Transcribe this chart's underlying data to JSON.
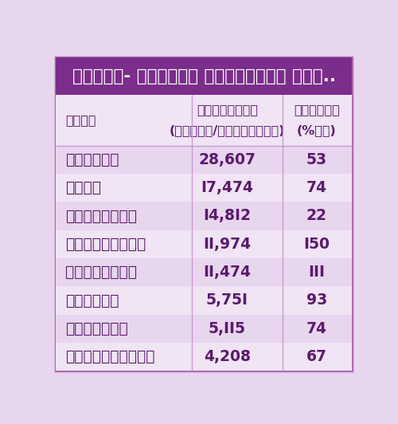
{
  "title": "జనవరి- జూన్‌లో అమ్మకాలు ఇలా..",
  "header_bg": "#7b2d8b",
  "header_text_color": "#ffffff",
  "table_bg": "#e8d5ee",
  "row_bg_alt": "#f0e4f5",
  "col_header": "నగరం",
  "col_sales_1": "అమ్మకాలు",
  "col_sales_2": "(ఇళ్ళు/ఫ్లాట్లు)",
  "col_growth_1": "వృద్ధి",
  "col_growth_2": "(%ల౏)",
  "cities": [
    "ముంబయి",
    "పుణే",
    "బెంగళూరు",
    "హైదరాబాద్",
    "ఎన్‌సీఆర్",
    "చెన్నై",
    "కోల్కతా",
    "అహ్మదాబాద్"
  ],
  "sales": [
    "28,607",
    "I7,474",
    "I4,8I2",
    "II,974",
    "II,474",
    "5,75I",
    "5,II5",
    "4,208"
  ],
  "growth": [
    "53",
    "74",
    "22",
    "I50",
    "III",
    "93",
    "74",
    "67"
  ],
  "body_text_color": "#5a1a6e",
  "outer_border_color": "#b06ab3",
  "divider_color": "#c89ad0",
  "figsize": [
    5.0,
    5.32
  ],
  "dpi": 100,
  "title_fontsize": 15.5,
  "header_fontsize": 11.5,
  "data_fontsize": 13.5,
  "col1_label_fontsize": 11.5
}
